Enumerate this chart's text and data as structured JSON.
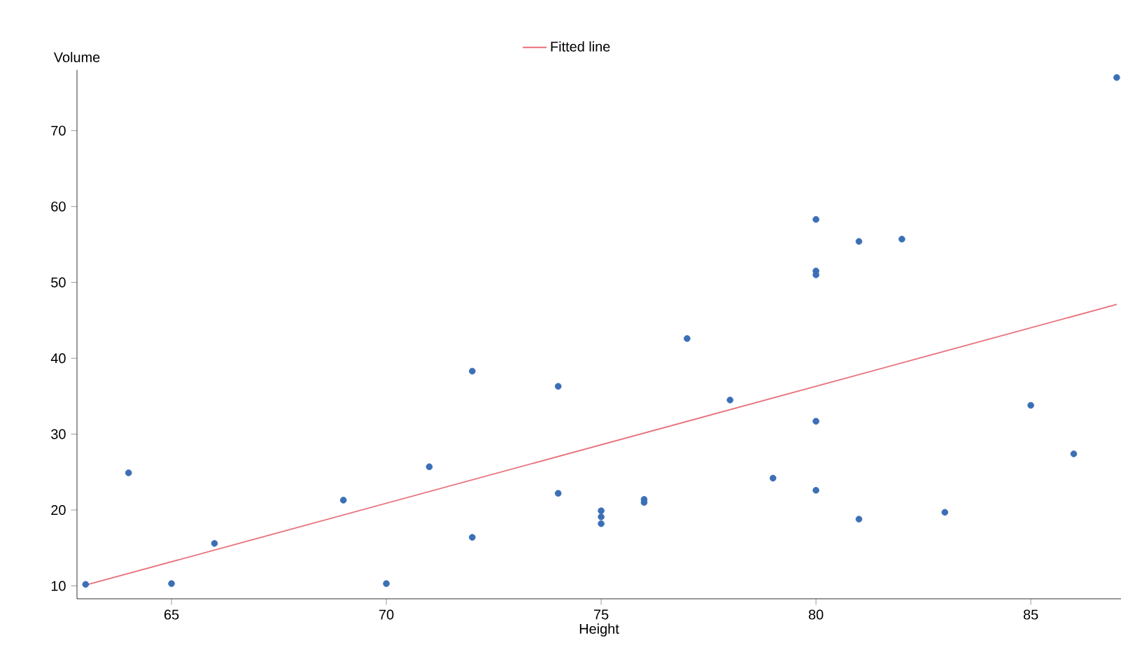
{
  "chart_data": {
    "type": "scatter",
    "xlabel": "Height",
    "ylabel": "Volume",
    "xlim": [
      62.8,
      87.1
    ],
    "ylim": [
      8.3,
      78
    ],
    "xticks": [
      65,
      70,
      75,
      80,
      85
    ],
    "yticks": [
      10,
      20,
      30,
      40,
      50,
      60,
      70
    ],
    "legend": "top",
    "grid": false,
    "series": [
      {
        "color": "#3b6fb6",
        "marker": "circle",
        "x": [
          70,
          65,
          63,
          72,
          81,
          83,
          66,
          75,
          80,
          75,
          79,
          76,
          76,
          69,
          75,
          74,
          85,
          86,
          71,
          64,
          78,
          80,
          74,
          72,
          77,
          81,
          82,
          80,
          80,
          80,
          87
        ],
        "values": [
          10.3,
          10.3,
          10.2,
          16.4,
          18.8,
          19.7,
          15.6,
          18.2,
          22.6,
          19.9,
          24.2,
          21.0,
          21.4,
          21.3,
          19.1,
          22.2,
          33.8,
          27.4,
          25.7,
          24.9,
          34.5,
          31.7,
          36.3,
          38.3,
          42.6,
          55.4,
          55.7,
          58.3,
          51.5,
          51.0,
          77.0
        ]
      },
      {
        "type": "line",
        "name": "Fitted line",
        "color": "#e8707a",
        "x": [
          63,
          87
        ],
        "values": [
          10.1,
          47.1
        ]
      }
    ]
  }
}
